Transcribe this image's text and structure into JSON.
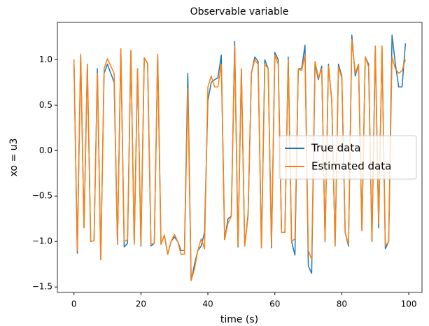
{
  "chart_data": {
    "type": "line",
    "title": "Observable variable",
    "xlabel": "time (s)",
    "ylabel": "xo = u3",
    "x": [
      0,
      1,
      2,
      3,
      4,
      5,
      6,
      7,
      8,
      9,
      10,
      11,
      12,
      13,
      14,
      15,
      16,
      17,
      18,
      19,
      20,
      21,
      22,
      23,
      24,
      25,
      26,
      27,
      28,
      29,
      30,
      31,
      32,
      33,
      34,
      35,
      36,
      37,
      38,
      39,
      40,
      41,
      42,
      43,
      44,
      45,
      46,
      47,
      48,
      49,
      50,
      51,
      52,
      53,
      54,
      55,
      56,
      57,
      58,
      59,
      60,
      61,
      62,
      63,
      64,
      65,
      66,
      67,
      68,
      69,
      70,
      71,
      72,
      73,
      74,
      75,
      76,
      77,
      78,
      79,
      80,
      81,
      82,
      83,
      84,
      85,
      86,
      87,
      88,
      89,
      90,
      91,
      92,
      93,
      94,
      95,
      96,
      97,
      98,
      99
    ],
    "series": [
      {
        "name": "True data",
        "color": "#1f77b4",
        "values": [
          1.0,
          -1.13,
          1.06,
          -0.85,
          0.95,
          -1.0,
          -0.99,
          0.9,
          -1.2,
          0.85,
          0.95,
          0.85,
          0.75,
          -1.03,
          1.12,
          -1.06,
          -1.02,
          1.1,
          -1.03,
          0.9,
          -1.05,
          1.02,
          0.96,
          -1.05,
          -1.02,
          1.06,
          -1.03,
          -0.93,
          -1.14,
          -1.0,
          -0.95,
          -1.0,
          -1.1,
          -1.1,
          0.85,
          -1.43,
          -1.25,
          -1.1,
          -1.05,
          -0.9,
          0.55,
          0.75,
          0.78,
          0.8,
          1.05,
          -0.98,
          -0.75,
          -0.72,
          1.2,
          -1.06,
          0.9,
          -1.05,
          -0.7,
          0.85,
          1.03,
          0.98,
          -1.07,
          1.0,
          0.9,
          -1.07,
          1.08,
          1.0,
          -0.9,
          -0.9,
          1.03,
          -1.0,
          -1.15,
          0.9,
          0.9,
          1.16,
          -1.27,
          -1.35,
          0.95,
          0.78,
          0.93,
          -1.0,
          0.95,
          0.55,
          -1.05,
          0.95,
          0.82,
          -0.9,
          -1.05,
          1.27,
          0.82,
          0.95,
          -0.88,
          1.03,
          0.95,
          -1.0,
          1.13,
          -0.85,
          1.15,
          -1.08,
          -1.0,
          1.27,
          0.95,
          0.7,
          0.7,
          1.18
        ]
      },
      {
        "name": "Estimated data",
        "color": "#ff7f0e",
        "values": [
          1.0,
          -1.1,
          1.06,
          -0.85,
          0.95,
          -1.0,
          -0.99,
          0.85,
          -1.2,
          0.9,
          1.01,
          0.93,
          0.85,
          -1.03,
          1.12,
          -1.0,
          -0.98,
          1.1,
          -1.03,
          0.9,
          -1.03,
          1.02,
          0.96,
          -1.03,
          -1.02,
          1.06,
          -1.03,
          -0.93,
          -1.14,
          -1.0,
          -0.92,
          -1.0,
          -1.14,
          -1.14,
          0.68,
          -1.43,
          -1.3,
          -1.1,
          -0.97,
          -1.08,
          0.7,
          0.82,
          0.7,
          0.7,
          0.95,
          -0.98,
          -0.8,
          -0.72,
          1.15,
          -1.05,
          0.9,
          -1.05,
          -0.73,
          0.85,
          1.0,
          0.95,
          -1.07,
          0.95,
          0.9,
          -1.05,
          1.05,
          0.95,
          -0.9,
          -0.9,
          1.0,
          -1.0,
          -0.97,
          0.9,
          0.88,
          1.05,
          -1.1,
          -1.2,
          0.98,
          0.8,
          0.9,
          -1.0,
          0.93,
          0.55,
          -1.05,
          0.92,
          0.8,
          -0.9,
          -1.03,
          1.22,
          0.85,
          0.95,
          -0.88,
          1.03,
          0.92,
          -1.0,
          1.15,
          -0.8,
          1.15,
          -1.05,
          -1.0,
          1.03,
          0.9,
          0.85,
          0.88,
          1.0
        ]
      }
    ],
    "xlim": [
      -4.95,
      103.95
    ],
    "ylim": [
      -1.56,
      1.41
    ],
    "xticks": [
      0,
      20,
      40,
      60,
      80,
      100
    ],
    "yticks": [
      {
        "value": -1.5,
        "label": "−1.5"
      },
      {
        "value": -1.0,
        "label": "−1.0"
      },
      {
        "value": -0.5,
        "label": "−0.5"
      },
      {
        "value": 0.0,
        "label": "0.0"
      },
      {
        "value": 0.5,
        "label": "0.5"
      },
      {
        "value": 1.0,
        "label": "1.0"
      }
    ],
    "legend": "center right"
  }
}
